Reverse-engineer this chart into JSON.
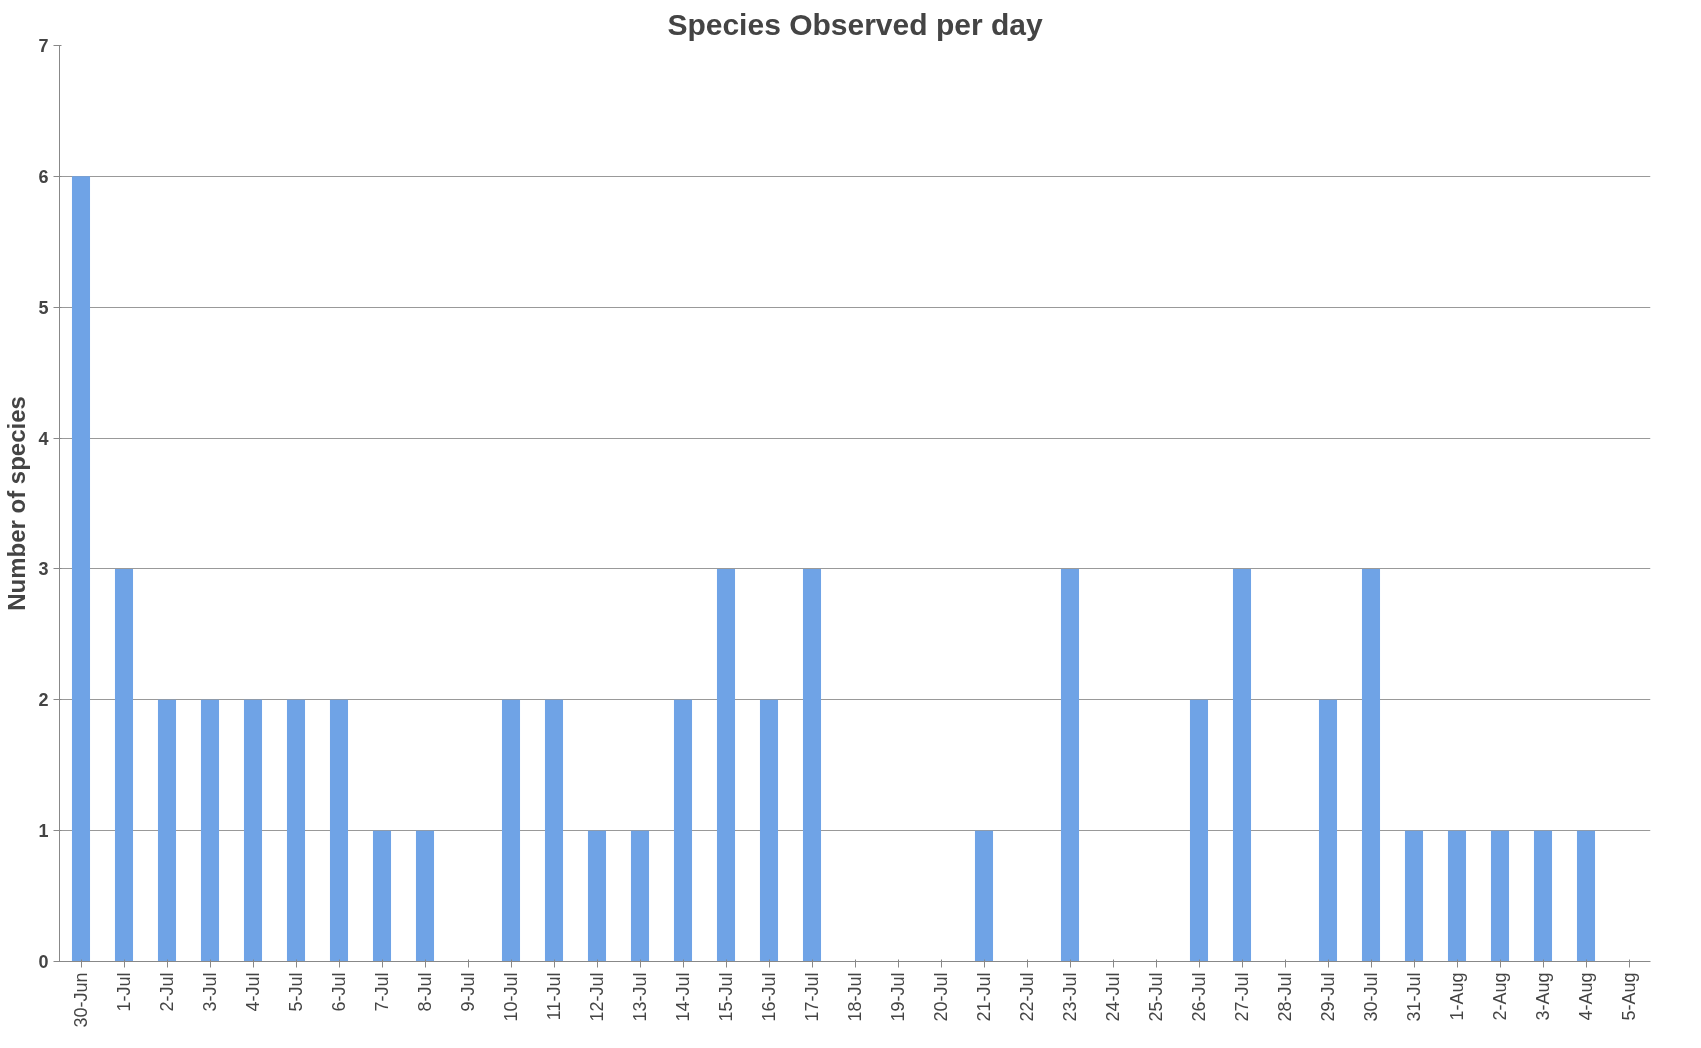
{
  "chart_data": {
    "type": "bar",
    "title": "Species Observed per day",
    "ylabel": "Number of species",
    "categories": [
      "30-Jun",
      "1-Jul",
      "2-Jul",
      "3-Jul",
      "4-Jul",
      "5-Jul",
      "6-Jul",
      "7-Jul",
      "8-Jul",
      "9-Jul",
      "10-Jul",
      "11-Jul",
      "12-Jul",
      "13-Jul",
      "14-Jul",
      "15-Jul",
      "16-Jul",
      "17-Jul",
      "18-Jul",
      "19-Jul",
      "20-Jul",
      "21-Jul",
      "22-Jul",
      "23-Jul",
      "24-Jul",
      "25-Jul",
      "26-Jul",
      "27-Jul",
      "28-Jul",
      "29-Jul",
      "30-Jul",
      "31-Jul",
      "1-Aug",
      "2-Aug",
      "3-Aug",
      "4-Aug",
      "5-Aug"
    ],
    "values": [
      6,
      3,
      2,
      2,
      2,
      2,
      2,
      1,
      1,
      0,
      2,
      2,
      1,
      1,
      2,
      3,
      2,
      3,
      0,
      0,
      0,
      1,
      0,
      3,
      0,
      0,
      2,
      3,
      0,
      2,
      3,
      1,
      1,
      1,
      1,
      1,
      0
    ],
    "color": "#6fa3e6",
    "ylim": [
      0,
      7
    ],
    "yticks": [
      0,
      1,
      2,
      3,
      4,
      5,
      6,
      7
    ],
    "grid": "y"
  }
}
